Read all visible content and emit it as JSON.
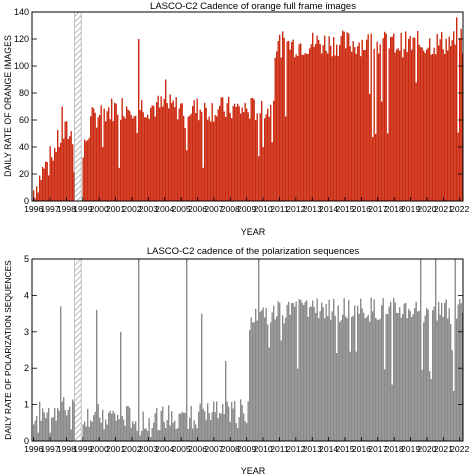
{
  "chart_data": [
    {
      "type": "bar",
      "title": "LASCO-C2 Cadence of orange full frame images",
      "xlabel": "YEAR",
      "ylabel": "DAILY RATE OF ORANGE IMAGES",
      "xlim": [
        1995.9,
        2022.2
      ],
      "ylim": [
        0,
        140
      ],
      "yticks": [
        0,
        20,
        40,
        60,
        80,
        100,
        120,
        140
      ],
      "xticks": [
        "1996",
        "1997",
        "1998",
        "1999",
        "2000",
        "2001",
        "2002",
        "2003",
        "2004",
        "2005",
        "2006",
        "2007",
        "2008",
        "2009",
        "2010",
        "2011",
        "2012",
        "2013",
        "2014",
        "2015",
        "2016",
        "2017",
        "2018",
        "2019",
        "2020",
        "2021",
        "2022"
      ],
      "bar_color": "#cc2a10",
      "gap": [
        1998.5,
        1998.9
      ],
      "series": [
        {
          "anchors": [
            [
              1996.0,
              8
            ],
            [
              1996.5,
              22
            ],
            [
              1997.0,
              32
            ],
            [
              1997.5,
              45
            ],
            [
              1998.0,
              52
            ],
            [
              1998.45,
              46
            ],
            [
              1998.95,
              30
            ],
            [
              1999.2,
              48
            ],
            [
              1999.5,
              60
            ],
            [
              2000.0,
              66
            ],
            [
              2001.0,
              69
            ],
            [
              2002.0,
              71
            ],
            [
              2003.0,
              70
            ],
            [
              2004.0,
              70
            ],
            [
              2005.0,
              69
            ],
            [
              2006.0,
              68
            ],
            [
              2007.0,
              68
            ],
            [
              2008.0,
              68
            ],
            [
              2009.0,
              68
            ],
            [
              2010.0,
              68
            ],
            [
              2010.5,
              68
            ],
            [
              2010.55,
              113
            ],
            [
              2011.0,
              116
            ],
            [
              2012.0,
              116
            ],
            [
              2013.0,
              117
            ],
            [
              2016.0,
              117
            ],
            [
              2019.0,
              116
            ],
            [
              2022.0,
              118
            ]
          ],
          "spikes": [
            [
              1997.7,
              70
            ],
            [
              2002.4,
              120
            ],
            [
              2004.0,
              90
            ],
            [
              2007.0,
              100
            ],
            [
              2010.1,
              100
            ],
            [
              2021.8,
              136
            ]
          ]
        }
      ]
    },
    {
      "type": "bar",
      "title": "LASCO-C2 cadence of the polarization sequences",
      "xlabel": "YEAR",
      "ylabel": "DAILY RATE OF POLARIZATION SEQUENCES",
      "xlim": [
        1995.9,
        2022.2
      ],
      "ylim": [
        0,
        5
      ],
      "yticks": [
        0,
        1,
        2,
        3,
        4,
        5
      ],
      "xticks": [
        "1996",
        "1997",
        "1998",
        "1999",
        "2000",
        "2001",
        "2002",
        "2003",
        "2004",
        "2005",
        "2006",
        "2007",
        "2008",
        "2009",
        "2010",
        "2011",
        "2012",
        "2013",
        "2014",
        "2015",
        "2016",
        "2017",
        "2018",
        "2019",
        "2020",
        "2021",
        "2022"
      ],
      "bar_color": "#8a8a8a",
      "gap": [
        1998.5,
        1998.9
      ],
      "series": [
        {
          "anchors": [
            [
              1996.0,
              0.8
            ],
            [
              1998.0,
              0.9
            ],
            [
              1999.0,
              0.7
            ],
            [
              2003.0,
              0.6
            ],
            [
              2006.0,
              0.7
            ],
            [
              2008.0,
              0.8
            ],
            [
              2009.05,
              0.8
            ],
            [
              2009.15,
              3.6
            ],
            [
              2010.0,
              3.5
            ],
            [
              2012.0,
              3.6
            ],
            [
              2016.0,
              3.6
            ],
            [
              2019.0,
              3.6
            ],
            [
              2022.0,
              3.6
            ]
          ],
          "spikes": [
            [
              1997.2,
              2.7
            ],
            [
              1997.6,
              3.7
            ],
            [
              1999.3,
              2.8
            ],
            [
              1999.8,
              3.6
            ],
            [
              2000.4,
              4.6
            ],
            [
              2001.3,
              3.0
            ],
            [
              2002.4,
              5.0
            ],
            [
              2003.7,
              3.6
            ],
            [
              2004.6,
              3.4
            ],
            [
              2005.3,
              5.0
            ],
            [
              2006.2,
              3.5
            ],
            [
              2007.7,
              2.2
            ],
            [
              2009.7,
              5.0
            ],
            [
              2019.6,
              5.0
            ],
            [
              2020.5,
              5.0
            ],
            [
              2021.0,
              5.0
            ],
            [
              2021.7,
              5.0
            ]
          ]
        }
      ]
    }
  ]
}
